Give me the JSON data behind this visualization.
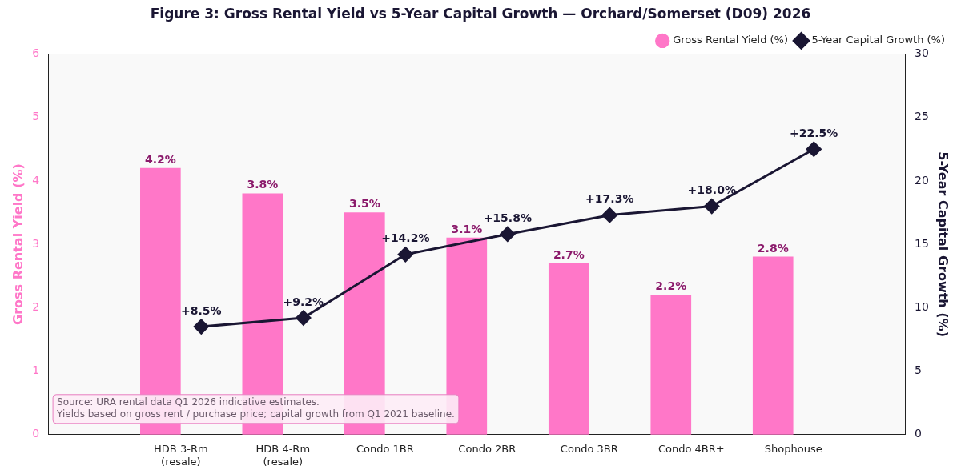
{
  "chart_data": {
    "type": "bar",
    "title": "Figure 3: Gross Rental Yield vs 5-Year Capital Growth — Orchard/Somerset (D09) 2026",
    "categories": [
      "HDB 3-Rm (resale)",
      "HDB 4-Rm (resale)",
      "Condo 1BR",
      "Condo 2BR",
      "Condo 3BR",
      "Condo 4BR+",
      "Shophouse"
    ],
    "series": [
      {
        "name": "Gross Rental Yield (%)",
        "color": "#ff77c8",
        "values": [
          4.2,
          3.8,
          3.5,
          3.1,
          2.7,
          2.2,
          2.8
        ],
        "value_labels": [
          "4.2%",
          "3.8%",
          "3.5%",
          "3.1%",
          "2.7%",
          "2.2%",
          "2.8%"
        ]
      },
      {
        "name": "5-Year Capital Growth (%)",
        "type": "line",
        "axis": "y2",
        "color": "#1a1633",
        "values": [
          8.5,
          9.2,
          14.2,
          15.8,
          17.3,
          18.0,
          22.5
        ],
        "value_labels": [
          "+8.5%",
          "+9.2%",
          "+14.2%",
          "+15.8%",
          "+17.3%",
          "+18.0%",
          "+22.5%"
        ]
      }
    ],
    "ylabel": "Gross Rental Yield (%)",
    "y2label": "5-Year Capital Growth (%)",
    "ylim": [
      0,
      6
    ],
    "yticks": [
      0,
      1,
      2,
      3,
      4,
      5,
      6
    ],
    "y2lim": [
      0,
      30
    ],
    "y2ticks": [
      0,
      5,
      10,
      15,
      20,
      25,
      30
    ],
    "marker": "diamond",
    "legend": "top right",
    "grid": false,
    "annotations": [
      "Source: URA rental data Q1 2026 indicative estimates.\nYields based on gross rent / purchase price; capital growth from Q1 2021 baseline."
    ]
  }
}
